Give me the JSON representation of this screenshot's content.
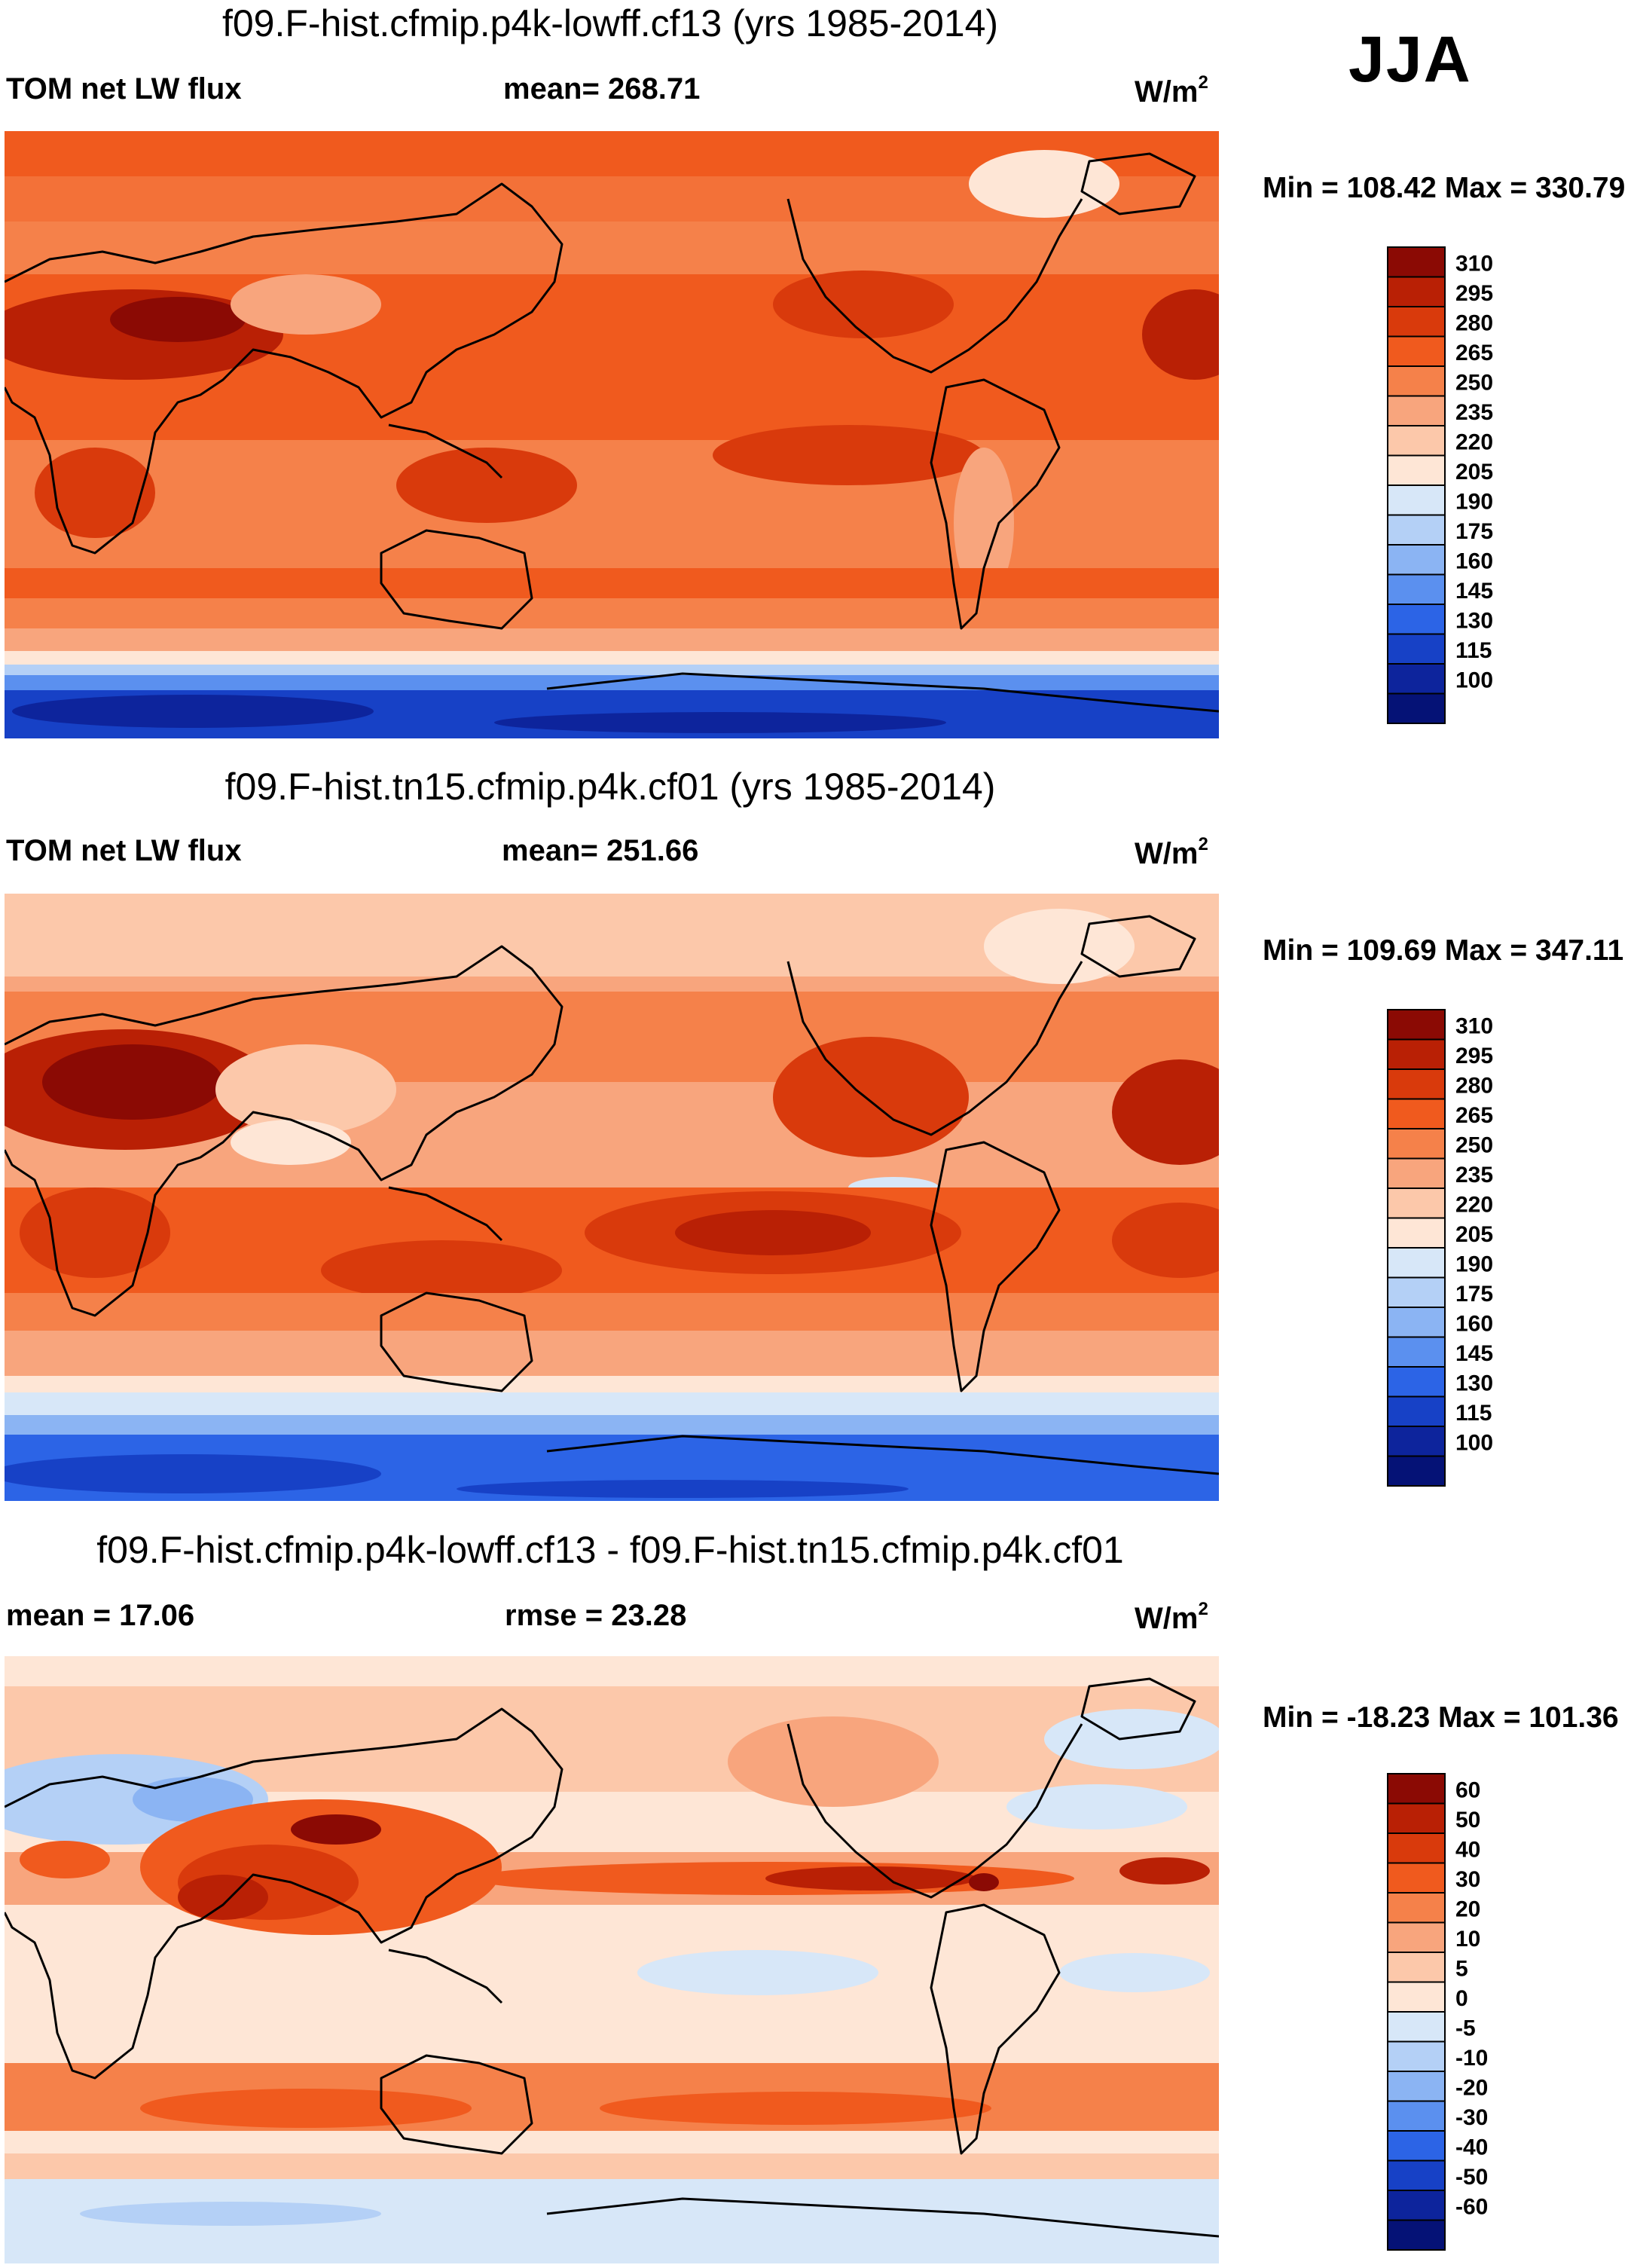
{
  "season": "JJA",
  "chart_data": [
    {
      "type": "heatmap",
      "title": "f09.F-hist.cfmip.p4k-lowff.cf13 (yrs 1985-2014)",
      "variable": "TOM net LW flux",
      "stat_label": "mean= 268.71",
      "mean": 268.71,
      "units": "W/m",
      "units_sup": "2",
      "min_max_label": "Min = 108.42 Max = 330.79",
      "min": 108.42,
      "max": 330.79,
      "colorbar": {
        "labels": [
          "310",
          "295",
          "280",
          "265",
          "250",
          "235",
          "220",
          "205",
          "190",
          "175",
          "160",
          "145",
          "130",
          "115",
          "100"
        ],
        "colors": [
          "#8b0a04",
          "#b92005",
          "#d93a0c",
          "#f05a1e",
          "#f5814a",
          "#f8a57d",
          "#fcc8aa",
          "#fee6d6",
          "#d7e7f8",
          "#b4d0f6",
          "#8bb4f3",
          "#5b90ef",
          "#2c64e6",
          "#1741c6",
          "#0d249c",
          "#051276"
        ]
      }
    },
    {
      "type": "heatmap",
      "title": "f09.F-hist.tn15.cfmip.p4k.cf01 (yrs 1985-2014)",
      "variable": "TOM net LW flux",
      "stat_label": "mean= 251.66",
      "mean": 251.66,
      "units": "W/m",
      "units_sup": "2",
      "min_max_label": "Min = 109.69 Max = 347.11",
      "min": 109.69,
      "max": 347.11,
      "colorbar": {
        "labels": [
          "310",
          "295",
          "280",
          "265",
          "250",
          "235",
          "220",
          "205",
          "190",
          "175",
          "160",
          "145",
          "130",
          "115",
          "100"
        ],
        "colors": [
          "#8b0a04",
          "#b92005",
          "#d93a0c",
          "#f05a1e",
          "#f5814a",
          "#f8a57d",
          "#fcc8aa",
          "#fee6d6",
          "#d7e7f8",
          "#b4d0f6",
          "#8bb4f3",
          "#5b90ef",
          "#2c64e6",
          "#1741c6",
          "#0d249c",
          "#051276"
        ]
      }
    },
    {
      "type": "heatmap",
      "title": "f09.F-hist.cfmip.p4k-lowff.cf13 - f09.F-hist.tn15.cfmip.p4k.cf01",
      "variable": "mean =  17.06",
      "stat_label": "rmse =  23.28",
      "mean": 17.06,
      "rmse": 23.28,
      "units": "W/m",
      "units_sup": "2",
      "min_max_label": "Min = -18.23 Max = 101.36",
      "min": -18.23,
      "max": 101.36,
      "colorbar": {
        "labels": [
          "60",
          "50",
          "40",
          "30",
          "20",
          "10",
          "5",
          "0",
          "-5",
          "-10",
          "-20",
          "-30",
          "-40",
          "-50",
          "-60"
        ],
        "colors": [
          "#8b0a04",
          "#b92005",
          "#d93a0c",
          "#f05a1e",
          "#f5814a",
          "#f8a57d",
          "#fcc8aa",
          "#fee6d6",
          "#d7e7f8",
          "#b4d0f6",
          "#8bb4f3",
          "#5b90ef",
          "#2c64e6",
          "#1741c6",
          "#0d249c",
          "#051276"
        ]
      }
    }
  ]
}
